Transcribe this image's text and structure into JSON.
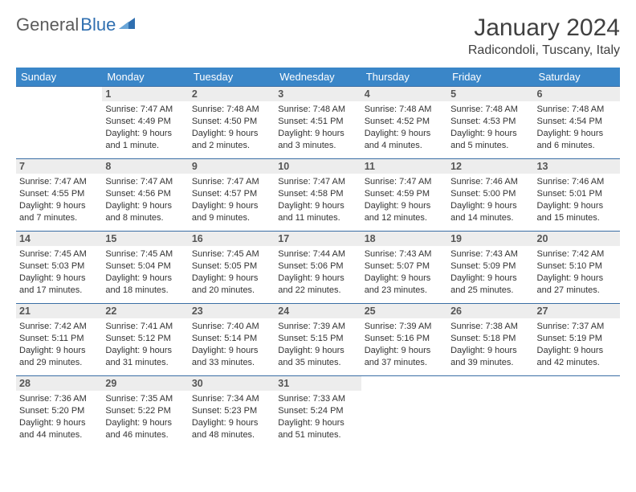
{
  "brand": {
    "part1": "General",
    "part2": "Blue",
    "triColor": "#2f6fb0"
  },
  "title": "January 2024",
  "location": "Radicondoli, Tuscany, Italy",
  "colors": {
    "header_bg": "#3a86c8",
    "header_fg": "#ffffff",
    "row_border": "#3a6ea5",
    "daynum_bg": "#ededed",
    "text": "#333333"
  },
  "weekdays": [
    "Sunday",
    "Monday",
    "Tuesday",
    "Wednesday",
    "Thursday",
    "Friday",
    "Saturday"
  ],
  "weeks": [
    [
      null,
      {
        "n": 1,
        "rise": "7:47 AM",
        "set": "4:49 PM",
        "dl": "9 hours and 1 minute."
      },
      {
        "n": 2,
        "rise": "7:48 AM",
        "set": "4:50 PM",
        "dl": "9 hours and 2 minutes."
      },
      {
        "n": 3,
        "rise": "7:48 AM",
        "set": "4:51 PM",
        "dl": "9 hours and 3 minutes."
      },
      {
        "n": 4,
        "rise": "7:48 AM",
        "set": "4:52 PM",
        "dl": "9 hours and 4 minutes."
      },
      {
        "n": 5,
        "rise": "7:48 AM",
        "set": "4:53 PM",
        "dl": "9 hours and 5 minutes."
      },
      {
        "n": 6,
        "rise": "7:48 AM",
        "set": "4:54 PM",
        "dl": "9 hours and 6 minutes."
      }
    ],
    [
      {
        "n": 7,
        "rise": "7:47 AM",
        "set": "4:55 PM",
        "dl": "9 hours and 7 minutes."
      },
      {
        "n": 8,
        "rise": "7:47 AM",
        "set": "4:56 PM",
        "dl": "9 hours and 8 minutes."
      },
      {
        "n": 9,
        "rise": "7:47 AM",
        "set": "4:57 PM",
        "dl": "9 hours and 9 minutes."
      },
      {
        "n": 10,
        "rise": "7:47 AM",
        "set": "4:58 PM",
        "dl": "9 hours and 11 minutes."
      },
      {
        "n": 11,
        "rise": "7:47 AM",
        "set": "4:59 PM",
        "dl": "9 hours and 12 minutes."
      },
      {
        "n": 12,
        "rise": "7:46 AM",
        "set": "5:00 PM",
        "dl": "9 hours and 14 minutes."
      },
      {
        "n": 13,
        "rise": "7:46 AM",
        "set": "5:01 PM",
        "dl": "9 hours and 15 minutes."
      }
    ],
    [
      {
        "n": 14,
        "rise": "7:45 AM",
        "set": "5:03 PM",
        "dl": "9 hours and 17 minutes."
      },
      {
        "n": 15,
        "rise": "7:45 AM",
        "set": "5:04 PM",
        "dl": "9 hours and 18 minutes."
      },
      {
        "n": 16,
        "rise": "7:45 AM",
        "set": "5:05 PM",
        "dl": "9 hours and 20 minutes."
      },
      {
        "n": 17,
        "rise": "7:44 AM",
        "set": "5:06 PM",
        "dl": "9 hours and 22 minutes."
      },
      {
        "n": 18,
        "rise": "7:43 AM",
        "set": "5:07 PM",
        "dl": "9 hours and 23 minutes."
      },
      {
        "n": 19,
        "rise": "7:43 AM",
        "set": "5:09 PM",
        "dl": "9 hours and 25 minutes."
      },
      {
        "n": 20,
        "rise": "7:42 AM",
        "set": "5:10 PM",
        "dl": "9 hours and 27 minutes."
      }
    ],
    [
      {
        "n": 21,
        "rise": "7:42 AM",
        "set": "5:11 PM",
        "dl": "9 hours and 29 minutes."
      },
      {
        "n": 22,
        "rise": "7:41 AM",
        "set": "5:12 PM",
        "dl": "9 hours and 31 minutes."
      },
      {
        "n": 23,
        "rise": "7:40 AM",
        "set": "5:14 PM",
        "dl": "9 hours and 33 minutes."
      },
      {
        "n": 24,
        "rise": "7:39 AM",
        "set": "5:15 PM",
        "dl": "9 hours and 35 minutes."
      },
      {
        "n": 25,
        "rise": "7:39 AM",
        "set": "5:16 PM",
        "dl": "9 hours and 37 minutes."
      },
      {
        "n": 26,
        "rise": "7:38 AM",
        "set": "5:18 PM",
        "dl": "9 hours and 39 minutes."
      },
      {
        "n": 27,
        "rise": "7:37 AM",
        "set": "5:19 PM",
        "dl": "9 hours and 42 minutes."
      }
    ],
    [
      {
        "n": 28,
        "rise": "7:36 AM",
        "set": "5:20 PM",
        "dl": "9 hours and 44 minutes."
      },
      {
        "n": 29,
        "rise": "7:35 AM",
        "set": "5:22 PM",
        "dl": "9 hours and 46 minutes."
      },
      {
        "n": 30,
        "rise": "7:34 AM",
        "set": "5:23 PM",
        "dl": "9 hours and 48 minutes."
      },
      {
        "n": 31,
        "rise": "7:33 AM",
        "set": "5:24 PM",
        "dl": "9 hours and 51 minutes."
      },
      null,
      null,
      null
    ]
  ],
  "labels": {
    "sunrise": "Sunrise:",
    "sunset": "Sunset:",
    "daylight": "Daylight:"
  }
}
